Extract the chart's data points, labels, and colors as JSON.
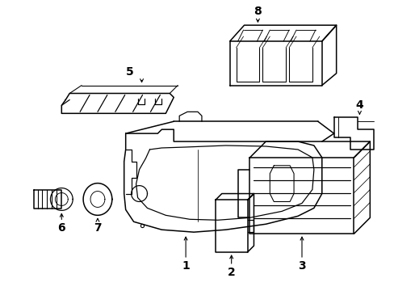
{
  "background_color": "#ffffff",
  "line_color": "#000000",
  "line_width": 1.1,
  "fig_w": 4.89,
  "fig_h": 3.6,
  "dpi": 100
}
